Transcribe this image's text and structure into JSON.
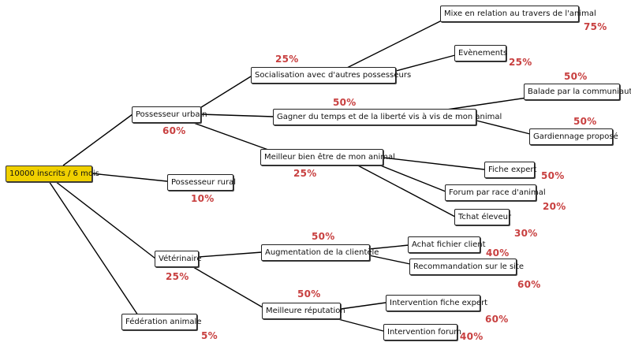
{
  "colors": {
    "root_fill": "#f0d000",
    "percent_text": "#c84040",
    "edge": "#000000"
  },
  "root": {
    "label": "10000 inscrits / 6 mois"
  },
  "branches": {
    "urbain": {
      "label": "Possesseur urbain",
      "percent": "60%",
      "socialisation": {
        "label": "Socialisation avec d'autres possesseurs",
        "percent": "25%",
        "mixe": {
          "label": "Mixe en relation au travers de l'animal",
          "percent": "75%"
        },
        "evenements": {
          "label": "Evènements",
          "percent": "25%"
        }
      },
      "gagner": {
        "label": "Gagner du temps et de la liberté vis à vis de mon animal",
        "percent": "50%",
        "balade": {
          "label": "Balade par la communiauté",
          "percent": "50%"
        },
        "gardiennage": {
          "label": "Gardiennage proposé",
          "percent": "50%"
        }
      },
      "bienetre": {
        "label": "Meilleur bien être de mon animal",
        "percent": "25%",
        "fiche": {
          "label": "Fiche expert",
          "percent": "50%"
        },
        "forum": {
          "label": "Forum par race d'animal",
          "percent": "20%"
        },
        "tchat": {
          "label": "Tchat éleveur",
          "percent": "30%"
        }
      }
    },
    "rural": {
      "label": "Possesseur rural",
      "percent": "10%"
    },
    "veterinaire": {
      "label": "Vétérinaire",
      "percent": "25%",
      "augmentation": {
        "label": "Augmentation de la clientèle",
        "percent": "50%",
        "achat": {
          "label": "Achat fichier client",
          "percent": "40%"
        },
        "recommandation": {
          "label": "Recommandation sur le site",
          "percent": "60%"
        }
      },
      "reputation": {
        "label": "Meilleure réputation",
        "percent": "50%",
        "intervention_fiche": {
          "label": "Intervention fiche expert",
          "percent": "60%"
        },
        "intervention_forum": {
          "label": "Intervention forum",
          "percent": "40%"
        }
      }
    },
    "federation": {
      "label": "Fédération animale",
      "percent": "5%"
    }
  }
}
